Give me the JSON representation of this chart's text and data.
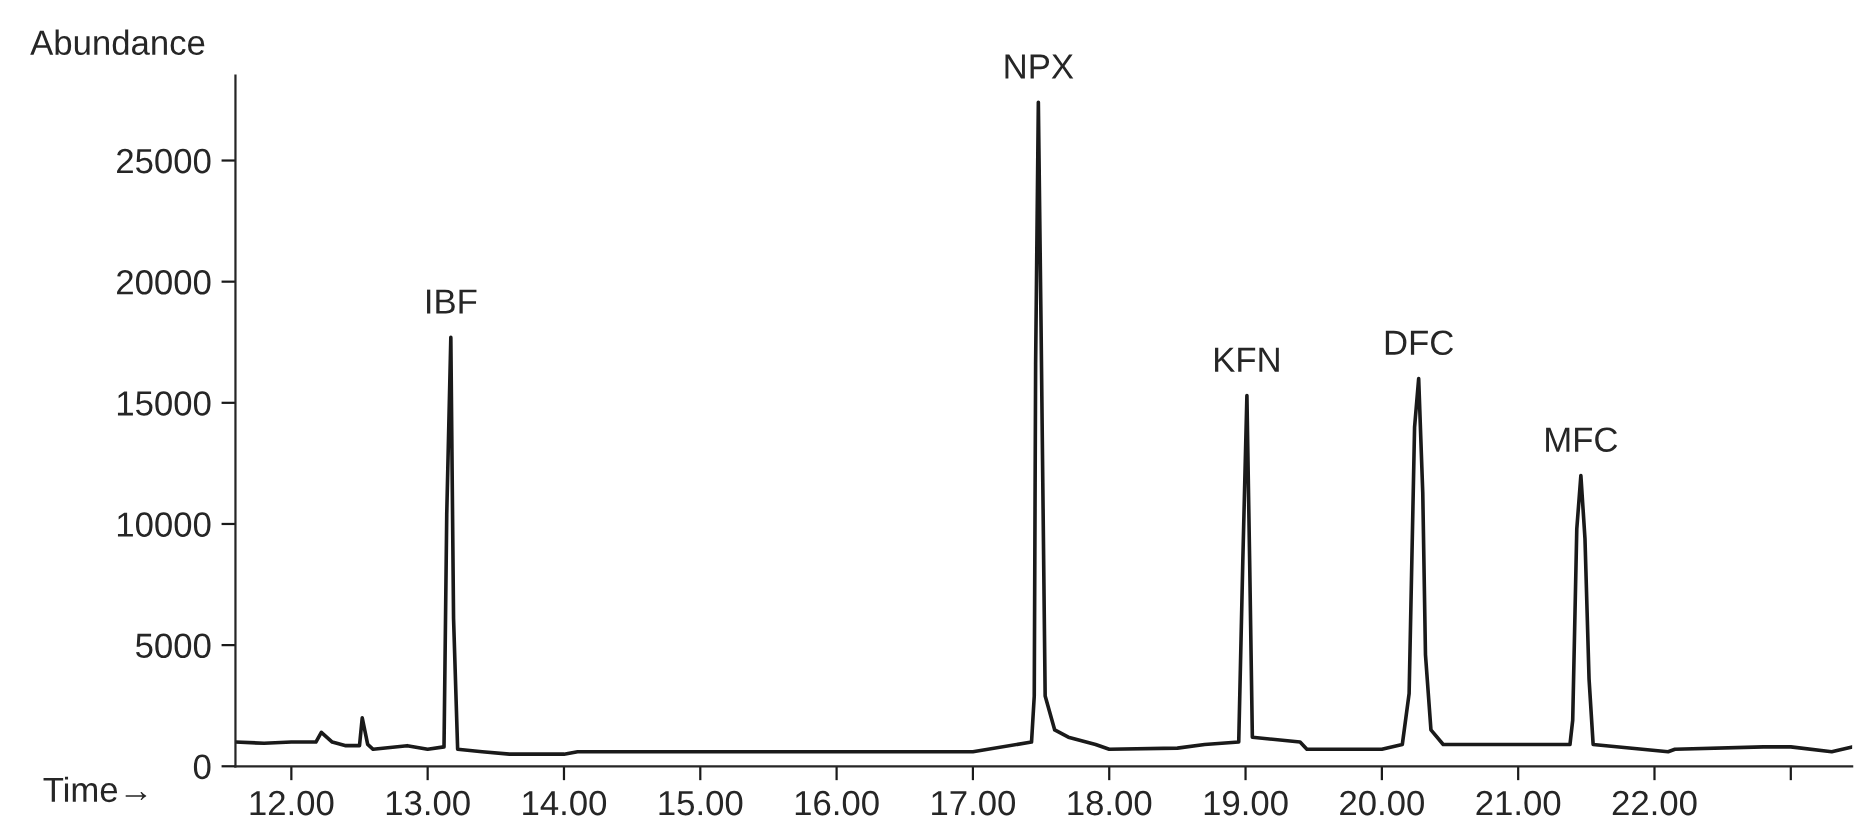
{
  "chart_data": {
    "type": "line",
    "xlabel": "Time→",
    "ylabel": "Abundance",
    "xlim": [
      11.59,
      23.45
    ],
    "ylim": [
      0,
      28500
    ],
    "xticks": [
      {
        "value": 12,
        "label": "12.00"
      },
      {
        "value": 13,
        "label": "13.00"
      },
      {
        "value": 14,
        "label": "14.00"
      },
      {
        "value": 15,
        "label": "15.00"
      },
      {
        "value": 16,
        "label": "16.00"
      },
      {
        "value": 17,
        "label": "17.00"
      },
      {
        "value": 18,
        "label": "18.00"
      },
      {
        "value": 19,
        "label": "19.00"
      },
      {
        "value": 20,
        "label": "20.00"
      },
      {
        "value": 21,
        "label": "21.00"
      },
      {
        "value": 22,
        "label": "22.00"
      },
      {
        "value": 23,
        "label": null
      }
    ],
    "yticks": [
      0,
      5000,
      10000,
      15000,
      20000,
      25000
    ],
    "grid": false,
    "legend": false,
    "marker": "none",
    "line_style": "solid",
    "annotations": [
      {
        "text": "IBF",
        "x": 13.17,
        "y": 17700
      },
      {
        "text": "NPX",
        "x": 17.48,
        "y": 27400
      },
      {
        "text": "KFN",
        "x": 19.01,
        "y": 15300
      },
      {
        "text": "DFC",
        "x": 20.27,
        "y": 16000
      },
      {
        "text": "MFC",
        "x": 21.46,
        "y": 12000
      }
    ],
    "series": [
      {
        "color": "#1a1a1a",
        "x": [
          11.59,
          11.8,
          12.0,
          12.18,
          12.22,
          12.3,
          12.4,
          12.5,
          12.52,
          12.56,
          12.6,
          12.85,
          13.0,
          13.12,
          13.14,
          13.17,
          13.19,
          13.22,
          13.4,
          13.6,
          14.0,
          14.1,
          15.0,
          16.0,
          17.0,
          17.43,
          17.45,
          17.46,
          17.48,
          17.5,
          17.53,
          17.6,
          17.7,
          17.9,
          18.0,
          18.5,
          18.7,
          18.95,
          18.98,
          19.01,
          19.03,
          19.05,
          19.4,
          19.45,
          20.0,
          20.15,
          20.2,
          20.24,
          20.27,
          20.3,
          20.32,
          20.36,
          20.45,
          21.38,
          21.4,
          21.43,
          21.46,
          21.49,
          21.52,
          21.55,
          22.1,
          22.15,
          22.8,
          23.0,
          23.3,
          23.45
        ],
        "values": [
          1000,
          950,
          1000,
          1000,
          1400,
          1000,
          850,
          850,
          2000,
          900,
          700,
          850,
          700,
          800,
          10400,
          17700,
          6100,
          700,
          600,
          500,
          500,
          600,
          600,
          600,
          600,
          1000,
          2900,
          16600,
          27400,
          18100,
          2900,
          1500,
          1200,
          900,
          700,
          750,
          900,
          1000,
          8500,
          15300,
          8500,
          1200,
          1000,
          700,
          700,
          900,
          3000,
          14000,
          16000,
          11300,
          4600,
          1500,
          900,
          900,
          1900,
          9800,
          12000,
          9400,
          3600,
          900,
          600,
          700,
          800,
          800,
          600,
          800
        ]
      }
    ]
  }
}
